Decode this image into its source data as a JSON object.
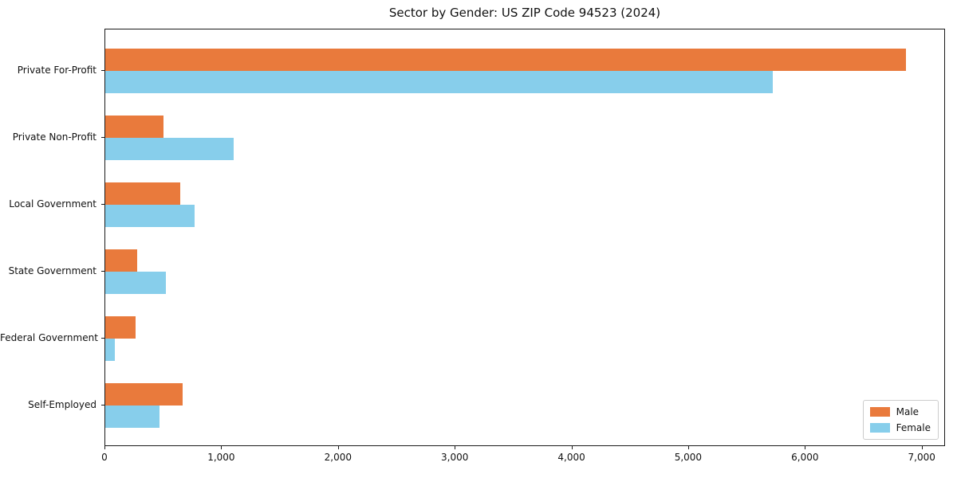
{
  "title": "Sector by Gender: US ZIP Code 94523 (2024)",
  "colors": {
    "male": "#E97A3C",
    "female": "#87CEEB",
    "spine": "#1a1a1a",
    "legend_border": "#cccccc",
    "background": "#ffffff"
  },
  "chart_data": {
    "type": "bar",
    "orientation": "horizontal",
    "title": "Sector by Gender: US ZIP Code 94523 (2024)",
    "categories": [
      "Private For-Profit",
      "Private Non-Profit",
      "Local Government",
      "State Government",
      "Federal Government",
      "Self-Employed"
    ],
    "series": [
      {
        "name": "Male",
        "color": "#E97A3C",
        "values": [
          6860,
          500,
          640,
          270,
          260,
          660
        ]
      },
      {
        "name": "Female",
        "color": "#87CEEB",
        "values": [
          5720,
          1100,
          765,
          520,
          85,
          465
        ]
      }
    ],
    "xlabel": "",
    "ylabel": "",
    "xlim": [
      0,
      7200
    ],
    "xticks": [
      0,
      1000,
      2000,
      3000,
      4000,
      5000,
      6000,
      7000
    ],
    "xtick_labels": [
      "0",
      "1,000",
      "2,000",
      "3,000",
      "4,000",
      "5,000",
      "6,000",
      "7,000"
    ],
    "legend_position": "lower right",
    "grid": false
  }
}
